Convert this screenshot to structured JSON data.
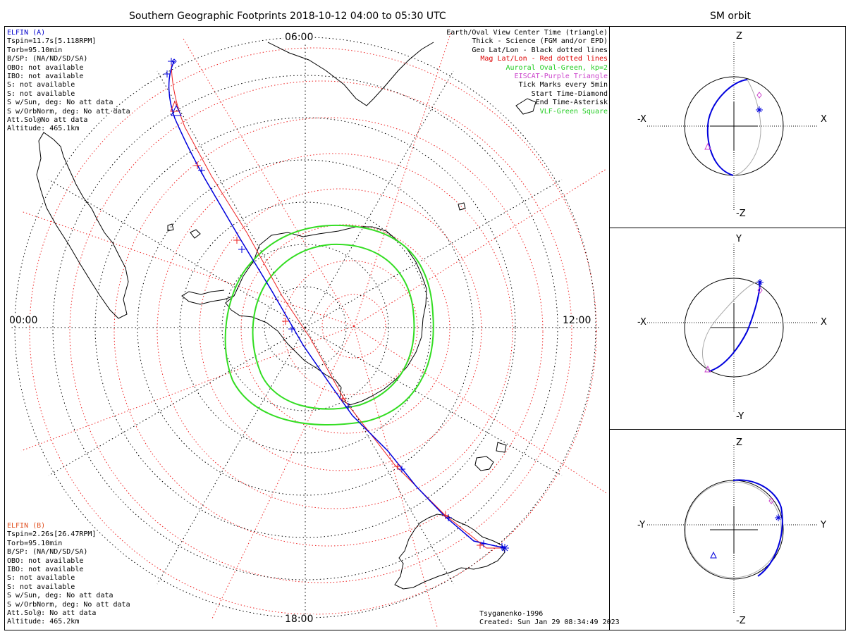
{
  "header": {
    "title": "Southern Geographic Footprints 2018-10-12 04:00 to 05:30 UTC",
    "orbit_title": "SM orbit"
  },
  "clock_labels": {
    "top": "06:00",
    "left": "00:00",
    "right": "12:00",
    "bottom": "18:00"
  },
  "elfin_a": {
    "name": "ELFIN (A)",
    "color": "#0000cc",
    "lines": [
      "Tspin=11.7s[5.118RPM]",
      "Torb=95.10min",
      "B/SP: (NA/ND/SD/SA)",
      "OBO: not available",
      "IBO: not available",
      "S: not available",
      "S: not available",
      "S w/Sun, deg: No att data",
      "S w/OrbNorm, deg: No att data",
      "Att.Sol@No att data",
      "Altitude: 465.1km"
    ]
  },
  "elfin_b": {
    "name": "ELFIN (B)",
    "color": "#e05020",
    "lines": [
      "Tspin=2.26s[26.47RPM]",
      "Torb=95.10min",
      "B/SP: (NA/ND/SD/SA)",
      "OBO: not available",
      "IBO: not available",
      "S: not available",
      "S: not available",
      "S w/Sun, deg: No att data",
      "S w/OrbNorm, deg: No att data",
      "Att.Sol@: No att data",
      "Altitude: 465.2km"
    ]
  },
  "legend": [
    {
      "text": "Earth/Oval View Center Time (triangle)",
      "color": "#000000"
    },
    {
      "text": "Thick - Science (FGM and/or EPD)",
      "color": "#000000"
    },
    {
      "text": "Geo Lat/Lon - Black dotted lines",
      "color": "#000000"
    },
    {
      "text": "Mag Lat/Lon - Red dotted lines",
      "color": "#dd0000"
    },
    {
      "text": "Auroral Oval-Green, kp=2",
      "color": "#22cc22"
    },
    {
      "text": "EISCAT-Purple Triangle",
      "color": "#cc44cc"
    },
    {
      "text": "Tick Marks every 5min",
      "color": "#000000"
    },
    {
      "text": "Start Time-Diamond",
      "color": "#000000"
    },
    {
      "text": "End Time-Asterisk",
      "color": "#000000"
    },
    {
      "text": "VLF-Green Square",
      "color": "#22cc22"
    }
  ],
  "footer": {
    "model": "Tsyganenko-1996",
    "created": "Created: Sun Jan 29 08:34:49 2023"
  },
  "orbit_panels": [
    {
      "top": "Z",
      "bottom": "-Z",
      "left": "-X",
      "right": "X"
    },
    {
      "top": "Y",
      "bottom": "-Y",
      "left": "-X",
      "right": "X"
    },
    {
      "top": "Z",
      "bottom": "-Z",
      "left": "-Y",
      "right": "Y"
    }
  ],
  "colors": {
    "track_a": "#0000dd",
    "track_b": "#ee2222",
    "oval": "#33dd22",
    "mag_grid": "#ee2222",
    "geo_grid": "#000000",
    "orbit_gray": "#aaaaaa"
  }
}
